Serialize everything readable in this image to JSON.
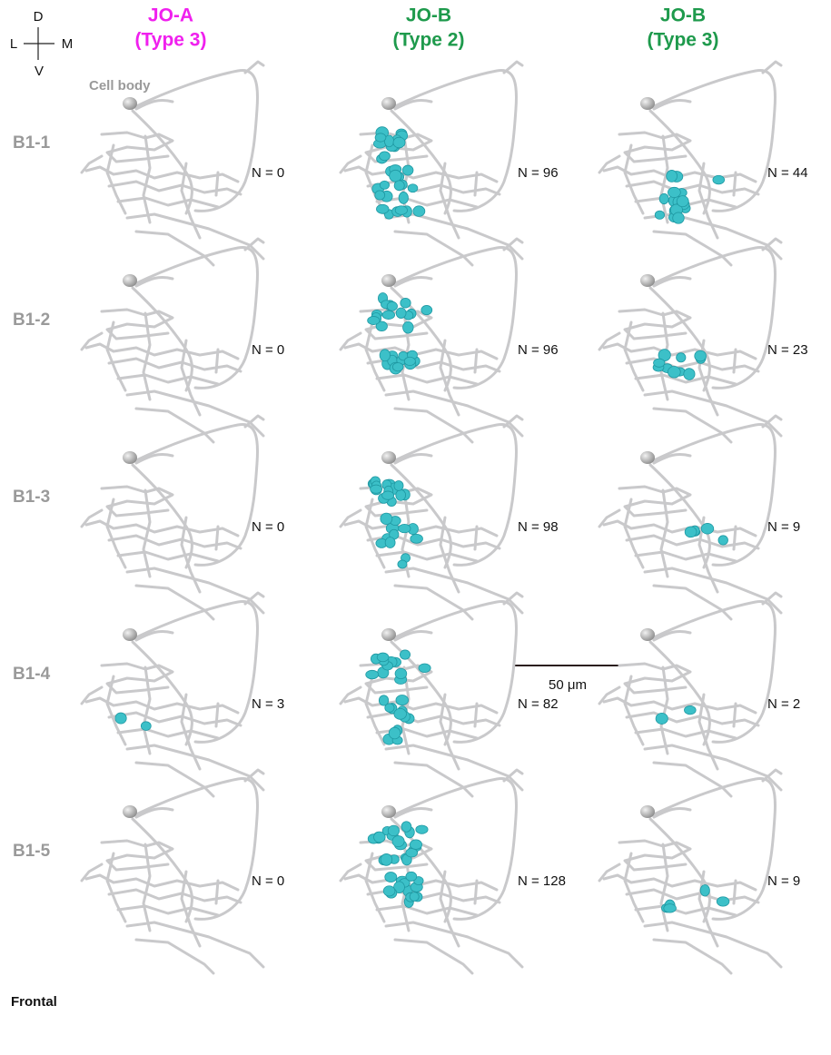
{
  "compass": {
    "dorsal": "D",
    "lateral": "L",
    "medial": "M",
    "ventral": "V"
  },
  "columns": [
    {
      "name": "JO-A",
      "type": "(Type 3)"
    },
    {
      "name": "JO-B",
      "type": "(Type 2)"
    },
    {
      "name": "JO-B",
      "type": "(Type 3)"
    }
  ],
  "cell_body_label": "Cell body",
  "rows": [
    {
      "label": "B1-1",
      "counts": [
        "N = 0",
        "N = 96",
        "N = 44"
      ]
    },
    {
      "label": "B1-2",
      "counts": [
        "N = 0",
        "N = 96",
        "N = 23"
      ]
    },
    {
      "label": "B1-3",
      "counts": [
        "N = 0",
        "N = 98",
        "N = 9"
      ]
    },
    {
      "label": "B1-4",
      "counts": [
        "N = 3",
        "N = 82",
        "N = 2"
      ]
    },
    {
      "label": "B1-5",
      "counts": [
        "N = 0",
        "N = 128",
        "N = 9"
      ]
    }
  ],
  "scale_bar": "50 μm",
  "view": "Frontal"
}
